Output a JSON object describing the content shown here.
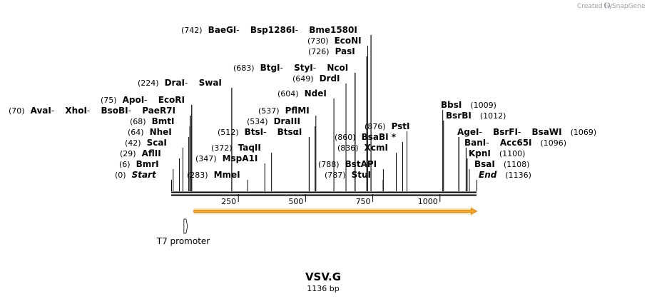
{
  "header": {
    "credit_text": "Created by",
    "brand": "SnapGene"
  },
  "plasmid": {
    "name": "VSV.G",
    "length_label": "1136 bp",
    "length_bp": 1136
  },
  "colors": {
    "backbone": "#000000",
    "feature_fill": "#f0a830",
    "feature_stroke": "#d07800",
    "feature_glow": "#fbe3b6",
    "promoter_fill": "#ffffff",
    "credit_text": "#9aa0a6",
    "brand_icon": "#9aa0a6"
  },
  "axis": {
    "ticks": [
      {
        "bp": 250,
        "label": "250"
      },
      {
        "bp": 500,
        "label": "500"
      },
      {
        "bp": 750,
        "label": "750"
      },
      {
        "bp": 1000,
        "label": "1000"
      }
    ]
  },
  "features": [
    {
      "name": "orf-arrow",
      "start": 84,
      "end": 1137,
      "direction": "forward",
      "label": ""
    },
    {
      "name": "t7-promoter",
      "start": 50,
      "end": 70,
      "direction": "forward",
      "label": "T7 promoter"
    }
  ],
  "label_groups": [
    {
      "side": "left",
      "pos": "(742)",
      "items": [
        {
          "name": "BaeGI",
          "bp": 742
        },
        {
          "name": "Bsp1286I",
          "bp": 742
        },
        {
          "name": "Bme1580I",
          "bp": 742
        }
      ]
    },
    {
      "side": "left",
      "pos": "(730)",
      "items": [
        {
          "name": "EcoNI",
          "bp": 730
        }
      ]
    },
    {
      "side": "left",
      "pos": "(726)",
      "items": [
        {
          "name": "PasI",
          "bp": 726
        }
      ]
    },
    {
      "side": "left",
      "pos": "(683)",
      "items": [
        {
          "name": "BtgI",
          "bp": 683
        },
        {
          "name": "StyI",
          "bp": 683
        },
        {
          "name": "NcoI",
          "bp": 683
        }
      ]
    },
    {
      "side": "left",
      "pos": "(649)",
      "items": [
        {
          "name": "DrdI",
          "bp": 649
        }
      ]
    },
    {
      "side": "left",
      "pos": "(224)",
      "items": [
        {
          "name": "DraI",
          "bp": 224
        },
        {
          "name": "SwaI",
          "bp": 224
        }
      ]
    },
    {
      "side": "left",
      "pos": "(604)",
      "items": [
        {
          "name": "NdeI",
          "bp": 604
        }
      ]
    },
    {
      "side": "left",
      "pos": "(75)",
      "items": [
        {
          "name": "ApoI",
          "bp": 75
        },
        {
          "name": "EcoRI",
          "bp": 75
        }
      ]
    },
    {
      "side": "left",
      "pos": "(70)",
      "items": [
        {
          "name": "AvaI",
          "bp": 70
        },
        {
          "name": "XhoI",
          "bp": 70
        },
        {
          "name": "BsoBI",
          "bp": 70
        },
        {
          "name": "PaeR7I",
          "bp": 70
        }
      ]
    },
    {
      "side": "left",
      "pos": "(537)",
      "items": [
        {
          "name": "PflMI",
          "bp": 537
        }
      ]
    },
    {
      "side": "left",
      "pos": "(68)",
      "items": [
        {
          "name": "BmtI",
          "bp": 68
        }
      ]
    },
    {
      "side": "left",
      "pos": "(534)",
      "items": [
        {
          "name": "DraIII",
          "bp": 534
        }
      ]
    },
    {
      "side": "left",
      "pos": "(64)",
      "items": [
        {
          "name": "NheI",
          "bp": 64
        }
      ]
    },
    {
      "side": "left",
      "pos": "(512)",
      "items": [
        {
          "name": "BtsI",
          "bp": 512
        },
        {
          "name": "BtsαI",
          "bp": 512
        }
      ]
    },
    {
      "side": "left",
      "pos": "(42)",
      "items": [
        {
          "name": "ScaI",
          "bp": 42
        }
      ]
    },
    {
      "side": "left",
      "pos": "(372)",
      "items": [
        {
          "name": "TaqII",
          "bp": 372
        }
      ]
    },
    {
      "side": "left",
      "pos": "(29)",
      "items": [
        {
          "name": "AflII",
          "bp": 29
        }
      ]
    },
    {
      "side": "left",
      "pos": "(347)",
      "items": [
        {
          "name": "MspA1I",
          "bp": 347
        }
      ]
    },
    {
      "side": "left",
      "pos": "(6)",
      "items": [
        {
          "name": "BmrI",
          "bp": 6
        }
      ]
    },
    {
      "side": "left",
      "pos": "(0)",
      "items": [
        {
          "name": "Start",
          "bp": 0,
          "italic": true
        }
      ]
    },
    {
      "side": "left",
      "pos": "(283)",
      "items": [
        {
          "name": "MmeI",
          "bp": 283
        }
      ]
    },
    {
      "side": "left",
      "pos": "(876)",
      "items": [
        {
          "name": "PstI",
          "bp": 876
        }
      ]
    },
    {
      "side": "left",
      "pos": "(860)",
      "items": [
        {
          "name": "BsaBI *",
          "bp": 860
        }
      ]
    },
    {
      "side": "left",
      "pos": "(836)",
      "items": [
        {
          "name": "XcmI",
          "bp": 836
        }
      ]
    },
    {
      "side": "left",
      "pos": "(788)",
      "items": [
        {
          "name": "BstAPI",
          "bp": 788
        }
      ]
    },
    {
      "side": "left",
      "pos": "(787)",
      "items": [
        {
          "name": "StuI",
          "bp": 787
        }
      ]
    },
    {
      "side": "right",
      "pos": "(1009)",
      "items": [
        {
          "name": "BbsI",
          "bp": 1009
        }
      ]
    },
    {
      "side": "right",
      "pos": "(1012)",
      "items": [
        {
          "name": "BsrBI",
          "bp": 1012
        }
      ]
    },
    {
      "side": "right",
      "pos": "(1069)",
      "items": [
        {
          "name": "AgeI",
          "bp": 1069
        },
        {
          "name": "BsrFI",
          "bp": 1069
        },
        {
          "name": "BsaWI",
          "bp": 1069
        }
      ]
    },
    {
      "side": "right",
      "pos": "(1096)",
      "items": [
        {
          "name": "BanI",
          "bp": 1096
        },
        {
          "name": "Acc65I",
          "bp": 1096
        }
      ]
    },
    {
      "side": "right",
      "pos": "(1100)",
      "items": [
        {
          "name": "KpnI",
          "bp": 1100
        }
      ]
    },
    {
      "side": "right",
      "pos": "(1108)",
      "items": [
        {
          "name": "BsaI",
          "bp": 1108
        }
      ]
    },
    {
      "side": "right",
      "pos": "(1136)",
      "items": [
        {
          "name": "End",
          "bp": 1136,
          "italic": true
        }
      ]
    }
  ]
}
